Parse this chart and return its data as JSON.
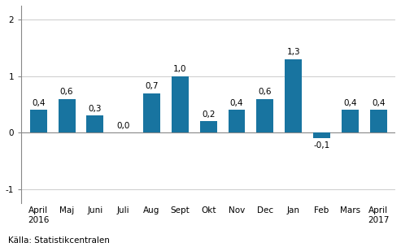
{
  "categories": [
    "April\n2016",
    "Maj",
    "Juni",
    "Juli",
    "Aug",
    "Sept",
    "Okt",
    "Nov",
    "Dec",
    "Jan",
    "Feb",
    "Mars",
    "April\n2017"
  ],
  "values": [
    0.4,
    0.6,
    0.3,
    0.0,
    0.7,
    1.0,
    0.2,
    0.4,
    0.6,
    1.3,
    -0.1,
    0.4,
    0.4
  ],
  "bar_color": "#1874a0",
  "ylim": [
    -1.25,
    2.25
  ],
  "yticks": [
    -1,
    0,
    1,
    2
  ],
  "source_text": "Källa: Statistikcentralen",
  "label_fontsize": 7.5,
  "tick_fontsize": 7.5,
  "source_fontsize": 7.5,
  "background_color": "#ffffff",
  "grid_color": "#cccccc"
}
